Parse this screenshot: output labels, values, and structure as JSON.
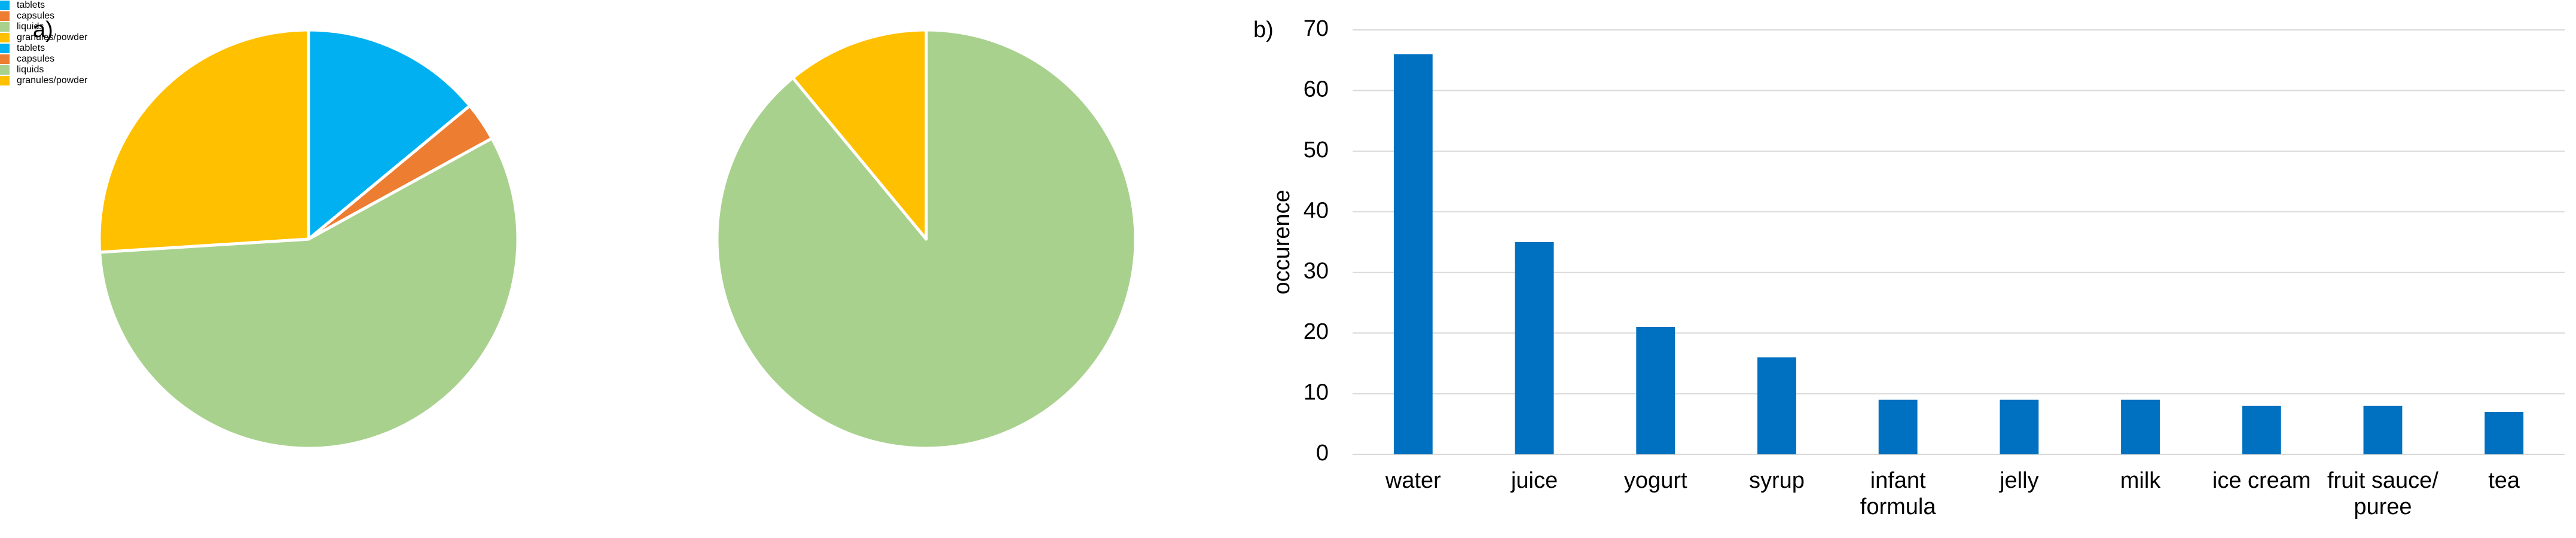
{
  "chart_data": [
    {
      "type": "pie",
      "panel_label": "a)",
      "categories": [
        "tablets",
        "capsules",
        "liquids",
        "granules/powder"
      ],
      "values": [
        14,
        3,
        57,
        26
      ],
      "colors": [
        "#00b0f0",
        "#ed7d31",
        "#a9d18e",
        "#ffc000"
      ],
      "legend": "bottom"
    },
    {
      "type": "pie",
      "categories": [
        "tablets",
        "capsules",
        "liquids",
        "granules/powder"
      ],
      "values": [
        0,
        0,
        89,
        11
      ],
      "colors": [
        "#00b0f0",
        "#ed7d31",
        "#a9d18e",
        "#ffc000"
      ],
      "legend": "bottom"
    },
    {
      "type": "bar",
      "panel_label": "b)",
      "y_label": "occurence",
      "categories": [
        "water",
        "juice",
        "yogurt",
        "syrup",
        "infant formula",
        "jelly",
        "milk",
        "ice cream",
        "fruit sauce/ puree",
        "tea"
      ],
      "values": [
        66,
        35,
        21,
        16,
        9,
        9,
        9,
        8,
        8,
        7
      ],
      "color": "#0070c0",
      "ylim": [
        0,
        70
      ],
      "yticks": [
        0,
        10,
        20,
        30,
        40,
        50,
        60,
        70
      ],
      "grid": true
    }
  ]
}
